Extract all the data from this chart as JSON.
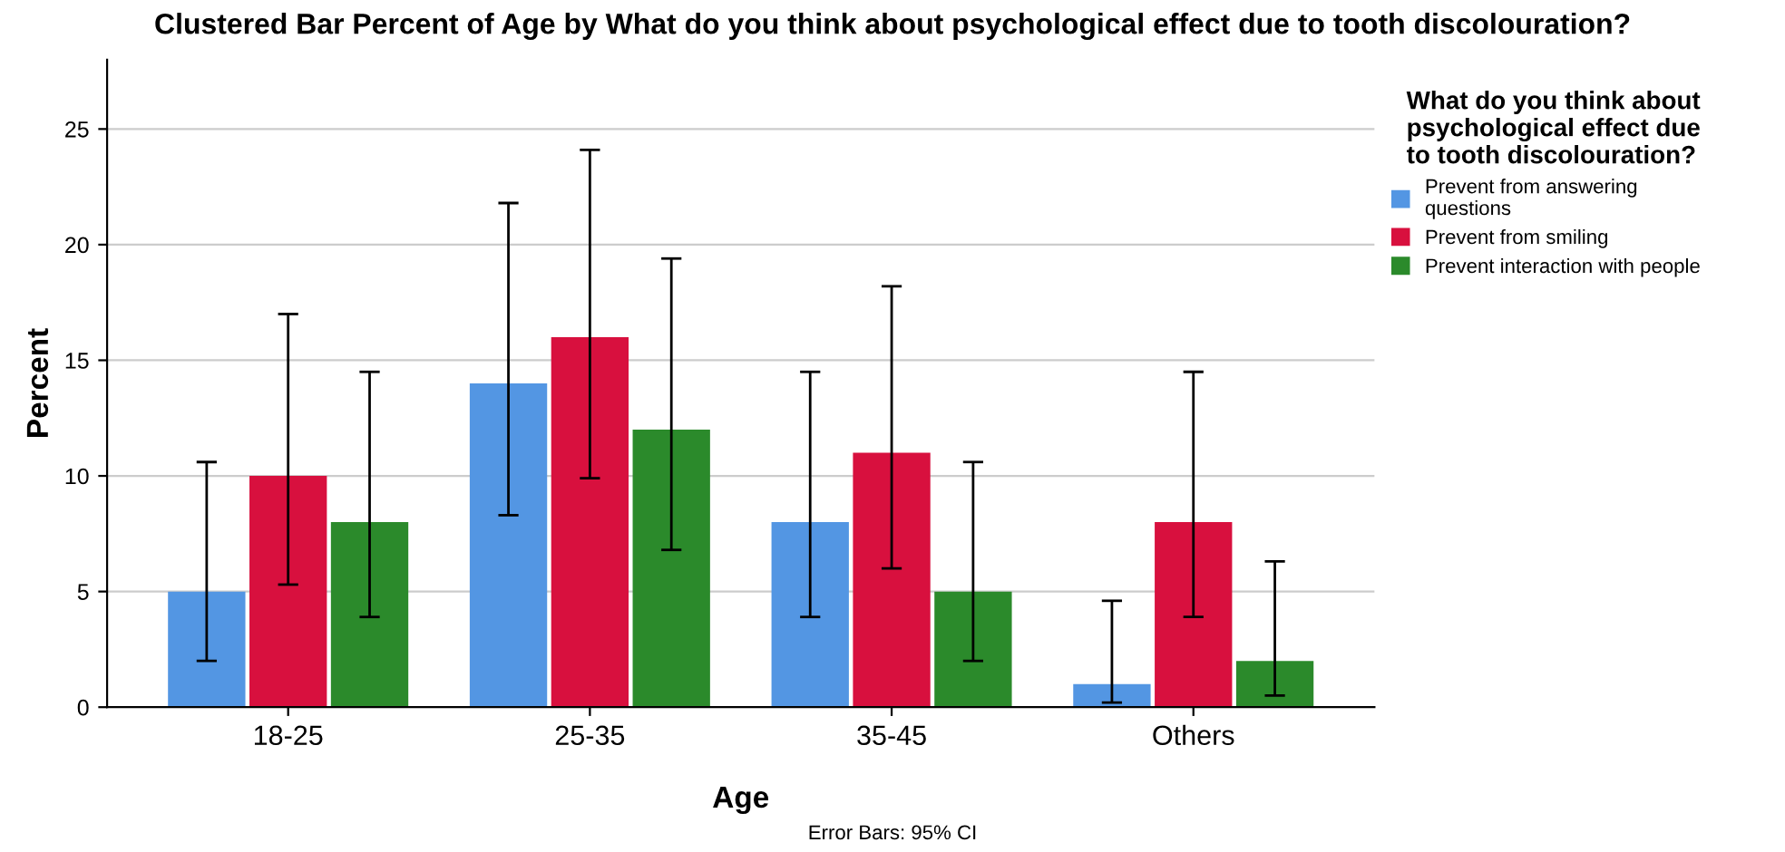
{
  "chart_data": {
    "type": "bar",
    "title": "Clustered Bar Percent of Age by What do you think about psychological effect due to tooth discolouration?",
    "xlabel": "Age",
    "ylabel": "Percent",
    "legend_title": "What do you think about\npsychological effect due\nto tooth discolouration?",
    "categories": [
      "18-25",
      "25-35",
      "35-45",
      "Others"
    ],
    "series": [
      {
        "name": "Prevent from answering\nquestions",
        "color": "#5396e3",
        "values": [
          5,
          14,
          8,
          1
        ],
        "errors": [
          [
            2,
            10.6
          ],
          [
            8.3,
            21.8
          ],
          [
            3.9,
            14.5
          ],
          [
            0.2,
            4.6
          ]
        ]
      },
      {
        "name": "Prevent from smiling",
        "color": "#d8103e",
        "values": [
          10,
          16,
          11,
          8
        ],
        "errors": [
          [
            5.3,
            17
          ],
          [
            9.9,
            24.1
          ],
          [
            6,
            18.2
          ],
          [
            3.9,
            14.5
          ]
        ]
      },
      {
        "name": "Prevent interaction with people",
        "color": "#2b8a2b",
        "values": [
          8,
          12,
          5,
          2
        ],
        "errors": [
          [
            3.9,
            14.5
          ],
          [
            6.8,
            19.4
          ],
          [
            2,
            10.6
          ],
          [
            0.5,
            6.3
          ]
        ]
      }
    ],
    "ylim": [
      0,
      28
    ],
    "yticks": [
      0,
      5,
      10,
      15,
      20,
      25
    ],
    "grid": "y",
    "legend": "right",
    "annotations": [
      "Error Bars: 95% CI"
    ]
  }
}
